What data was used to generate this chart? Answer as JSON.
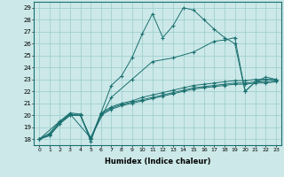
{
  "xlabel": "Humidex (Indice chaleur)",
  "bg_color": "#cce8e8",
  "line_color": "#1a7070",
  "grid_color": "#99cccc",
  "xlim": [
    -0.5,
    23.5
  ],
  "ylim": [
    17.5,
    29.5
  ],
  "xticks": [
    0,
    1,
    2,
    3,
    4,
    5,
    6,
    7,
    8,
    9,
    10,
    11,
    12,
    13,
    14,
    15,
    16,
    17,
    18,
    19,
    20,
    21,
    22,
    23
  ],
  "yticks": [
    18,
    19,
    20,
    21,
    22,
    23,
    24,
    25,
    26,
    27,
    28,
    29
  ],
  "lines": [
    {
      "x": [
        0,
        1,
        2,
        3,
        4,
        5,
        6,
        7,
        8,
        9,
        10,
        11,
        12,
        13,
        14,
        15,
        16,
        17,
        18,
        19,
        20,
        21,
        22,
        23
      ],
      "y": [
        18.0,
        18.5,
        19.5,
        20.2,
        20.1,
        17.8,
        20.2,
        22.5,
        23.3,
        24.8,
        26.8,
        28.5,
        26.5,
        27.5,
        29.0,
        28.8,
        28.0,
        27.2,
        26.5,
        26.0,
        22.0,
        22.8,
        23.2,
        23.0
      ]
    },
    {
      "x": [
        0,
        2,
        3,
        5,
        7,
        9,
        11,
        13,
        15,
        17,
        18,
        19,
        20,
        21,
        22,
        23
      ],
      "y": [
        18.0,
        19.5,
        20.1,
        18.1,
        21.5,
        23.0,
        24.5,
        24.8,
        25.3,
        26.2,
        26.3,
        26.5,
        22.0,
        22.8,
        23.0,
        23.0
      ]
    },
    {
      "x": [
        0,
        1,
        2,
        3,
        4,
        5,
        6,
        7,
        8,
        9,
        10,
        11,
        12,
        13,
        14,
        15,
        16,
        17,
        18,
        19,
        20,
        21,
        22,
        23
      ],
      "y": [
        18.0,
        18.3,
        19.3,
        20.0,
        20.0,
        18.0,
        20.0,
        20.5,
        20.8,
        21.0,
        21.2,
        21.4,
        21.6,
        21.8,
        22.0,
        22.2,
        22.3,
        22.4,
        22.5,
        22.6,
        22.6,
        22.7,
        22.7,
        22.8
      ]
    },
    {
      "x": [
        0,
        1,
        2,
        3,
        4,
        5,
        6,
        7,
        8,
        9,
        10,
        11,
        12,
        13,
        14,
        15,
        16,
        17,
        18,
        19,
        20,
        21,
        22,
        23
      ],
      "y": [
        18.0,
        18.3,
        19.3,
        20.0,
        20.0,
        18.1,
        20.1,
        20.6,
        20.9,
        21.1,
        21.3,
        21.5,
        21.7,
        21.9,
        22.1,
        22.3,
        22.4,
        22.5,
        22.6,
        22.7,
        22.7,
        22.8,
        22.8,
        22.9
      ]
    },
    {
      "x": [
        0,
        1,
        2,
        3,
        4,
        5,
        6,
        7,
        8,
        9,
        10,
        11,
        12,
        13,
        14,
        15,
        16,
        17,
        18,
        19,
        20,
        21,
        22,
        23
      ],
      "y": [
        18.0,
        18.4,
        19.4,
        20.1,
        20.0,
        18.0,
        20.2,
        20.7,
        21.0,
        21.2,
        21.5,
        21.7,
        21.9,
        22.1,
        22.3,
        22.5,
        22.6,
        22.7,
        22.8,
        22.9,
        22.9,
        23.0,
        23.0,
        23.0
      ]
    }
  ]
}
